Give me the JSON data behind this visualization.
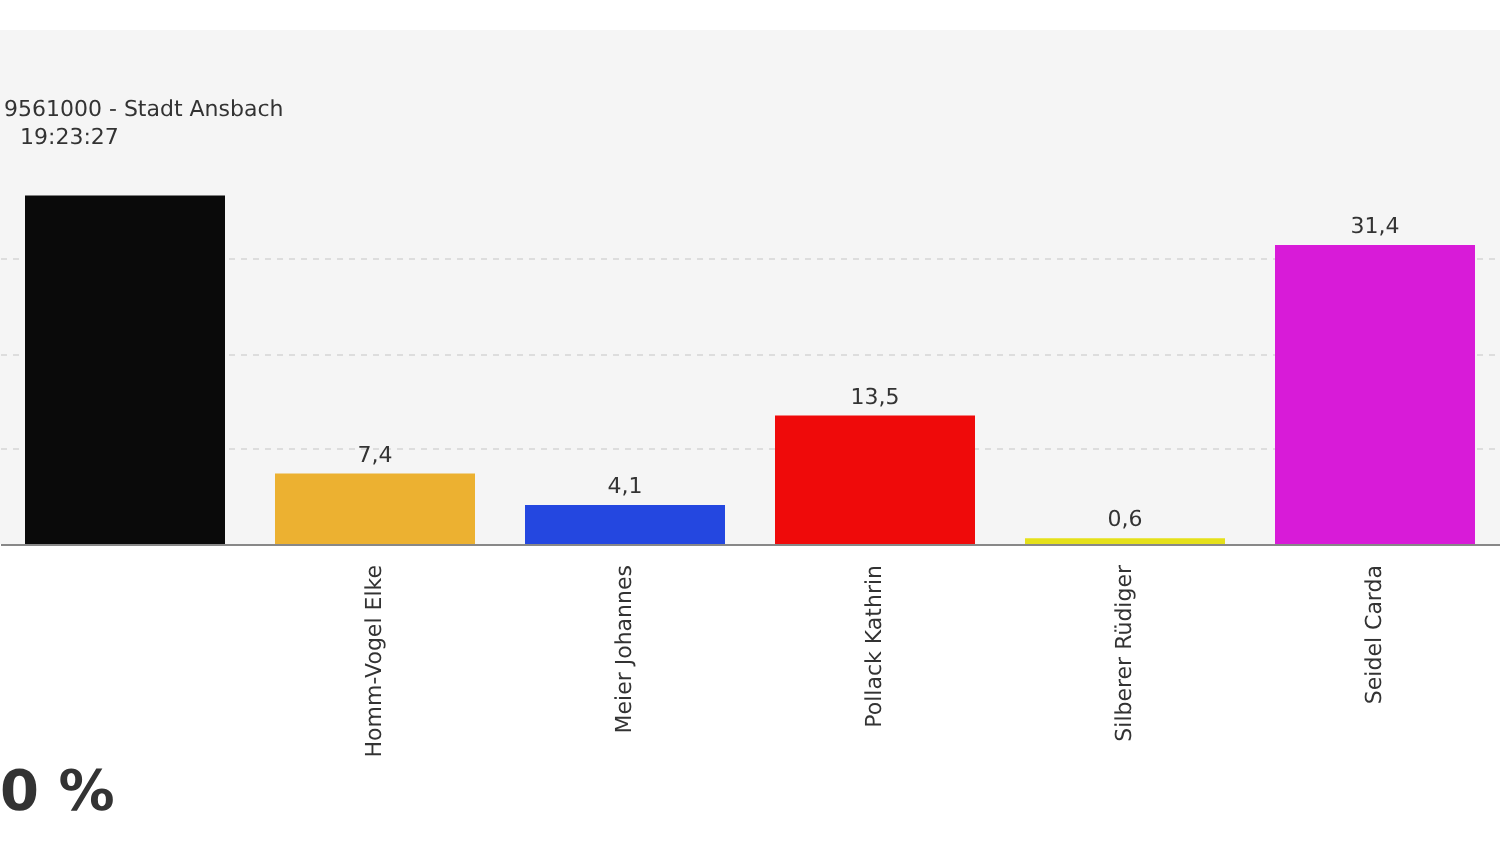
{
  "chart_data": {
    "type": "bar",
    "annotations": [
      "9561000 - Stadt Ansbach",
      "19:23:27",
      "0 %"
    ],
    "categories": [
      null,
      "Homm-Vogel Elke",
      "Meier Johannes",
      "Pollack Kathrin",
      "Silberer Rüdiger",
      "Seidel Carda"
    ],
    "values": [
      36.6,
      7.4,
      4.1,
      13.5,
      0.6,
      31.4
    ],
    "value_labels": [
      null,
      "7,4",
      "4,1",
      "13,5",
      "0,6",
      "31,4"
    ],
    "colors": [
      "#0a0a0a",
      "#ecb131",
      "#2447e0",
      "#ef0a0a",
      "#e5e01a",
      "#d81bd8"
    ],
    "ylim": [
      0,
      54
    ],
    "yticks": [
      {
        "value": 0,
        "label": null
      },
      {
        "value": 10,
        "label": null
      },
      {
        "value": 20,
        "label": null
      },
      {
        "value": 30,
        "label": null
      }
    ],
    "grid": "y",
    "tick_labels": "x"
  }
}
